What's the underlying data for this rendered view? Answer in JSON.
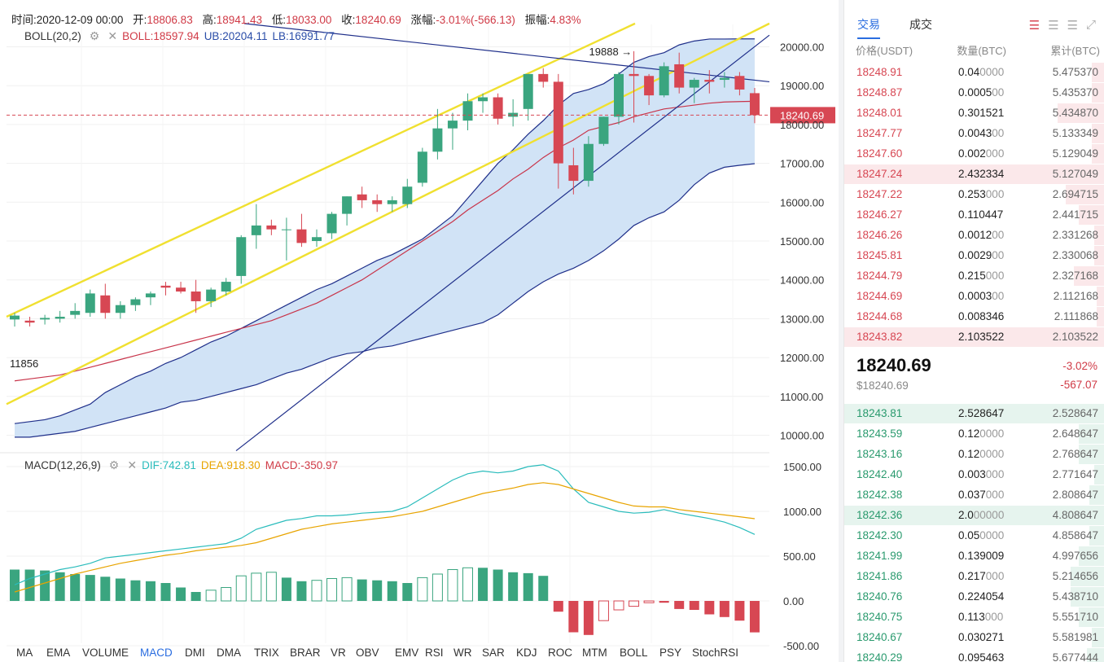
{
  "header": {
    "time_label": "时间:",
    "time": "2020-12-09 00:00",
    "open_label": "开:",
    "open": "18806.83",
    "high_label": "高:",
    "high": "18941.43",
    "low_label": "低:",
    "low": "18033.00",
    "close_label": "收:",
    "close": "18240.69",
    "chg_label": "涨幅:",
    "chg": "-3.01%(-566.13)",
    "amp_label": "振幅:",
    "amp": "4.83%"
  },
  "boll": {
    "name": "BOLL(20,2)",
    "mid": "BOLL:18597.94",
    "ub": "UB:20204.11",
    "lb": "LB:16991.77"
  },
  "macd": {
    "name": "MACD(12,26,9)",
    "dif": "DIF:742.81",
    "dea": "DEA:918.30",
    "macd": "MACD:-350.97"
  },
  "price_axis": [
    "20000.00",
    "19000.00",
    "18000.00",
    "17000.00",
    "16000.00",
    "15000.00",
    "14000.00",
    "13000.00",
    "12000.00",
    "11000.00",
    "10000.00"
  ],
  "current_price_tag": "18240.69",
  "high_annotation": "19888",
  "low_annotation": "11856",
  "macd_axis": [
    "1500.00",
    "1000.00",
    "500.00",
    "0.00",
    "-500.00"
  ],
  "indicator_tabs": [
    "MA",
    "EMA",
    "VOLUME",
    "MACD",
    "DMI",
    "DMA",
    "TRIX",
    "BRAR",
    "VR",
    "OBV",
    "EMV",
    "RSI",
    "WR",
    "SAR",
    "KDJ",
    "ROC",
    "MTM",
    "BOLL",
    "PSY",
    "StochRSI"
  ],
  "active_indicator": "MACD",
  "colors": {
    "up": "#3aa57f",
    "down": "#d74753",
    "boll_fill": "#cfe2f6",
    "boll_line": "#1f2f8a",
    "mid_line": "#c8344a",
    "trend_yellow": "#f0e030",
    "dif": "#2abcbc",
    "dea": "#e8a400"
  },
  "right_panel": {
    "tabs": [
      "交易",
      "成交"
    ],
    "columns": [
      "价格(USDT)",
      "数量(BTC)",
      "累计(BTC)"
    ],
    "asks": [
      {
        "p": "18248.91",
        "q": "0.04",
        "qd": "0000",
        "t": "5.475370",
        "bar": 0.05
      },
      {
        "p": "18248.87",
        "q": "0.0005",
        "qd": "00",
        "t": "5.435370",
        "bar": 0.05
      },
      {
        "p": "18248.01",
        "q": "0.301521",
        "qd": "",
        "t": "5.434870",
        "bar": 0.18
      },
      {
        "p": "18247.77",
        "q": "0.0043",
        "qd": "00",
        "t": "5.133349",
        "bar": 0.05
      },
      {
        "p": "18247.60",
        "q": "0.002",
        "qd": "000",
        "t": "5.129049",
        "bar": 0.05
      },
      {
        "p": "18247.24",
        "q": "2.432334",
        "qd": "",
        "t": "5.127049",
        "bar": 1.0
      },
      {
        "p": "18247.22",
        "q": "0.253",
        "qd": "000",
        "t": "2.694715",
        "bar": 0.15
      },
      {
        "p": "18246.27",
        "q": "0.110447",
        "qd": "",
        "t": "2.441715",
        "bar": 0.1
      },
      {
        "p": "18246.26",
        "q": "0.0012",
        "qd": "00",
        "t": "2.331268",
        "bar": 0.04
      },
      {
        "p": "18245.81",
        "q": "0.0029",
        "qd": "00",
        "t": "2.330068",
        "bar": 0.04
      },
      {
        "p": "18244.79",
        "q": "0.215",
        "qd": "000",
        "t": "2.327168",
        "bar": 0.12
      },
      {
        "p": "18244.69",
        "q": "0.0003",
        "qd": "00",
        "t": "2.112168",
        "bar": 0.03
      },
      {
        "p": "18244.68",
        "q": "0.008346",
        "qd": "",
        "t": "2.111868",
        "bar": 0.03
      },
      {
        "p": "18243.82",
        "q": "2.103522",
        "qd": "",
        "t": "2.103522",
        "bar": 1.0
      }
    ],
    "last_price": "18240.69",
    "last_usd": "$18240.69",
    "last_pct": "-3.02%",
    "last_chg": "-567.07",
    "bids": [
      {
        "p": "18243.81",
        "q": "2.528647",
        "qd": "",
        "t": "2.528647",
        "bar": 1.0
      },
      {
        "p": "18243.59",
        "q": "0.12",
        "qd": "0000",
        "t": "2.648647",
        "bar": 0.1
      },
      {
        "p": "18243.16",
        "q": "0.12",
        "qd": "0000",
        "t": "2.768647",
        "bar": 0.1
      },
      {
        "p": "18242.40",
        "q": "0.003",
        "qd": "000",
        "t": "2.771647",
        "bar": 0.04
      },
      {
        "p": "18242.38",
        "q": "0.037",
        "qd": "000",
        "t": "2.808647",
        "bar": 0.06
      },
      {
        "p": "18242.36",
        "q": "2.0",
        "qd": "00000",
        "t": "4.808647",
        "bar": 1.0
      },
      {
        "p": "18242.30",
        "q": "0.05",
        "qd": "0000",
        "t": "4.858647",
        "bar": 0.06
      },
      {
        "p": "18241.99",
        "q": "0.139009",
        "qd": "",
        "t": "4.997656",
        "bar": 0.1
      },
      {
        "p": "18241.86",
        "q": "0.217",
        "qd": "000",
        "t": "5.214656",
        "bar": 0.13
      },
      {
        "p": "18240.76",
        "q": "0.224054",
        "qd": "",
        "t": "5.438710",
        "bar": 0.13
      },
      {
        "p": "18240.75",
        "q": "0.113",
        "qd": "000",
        "t": "5.551710",
        "bar": 0.1
      },
      {
        "p": "18240.67",
        "q": "0.030271",
        "qd": "",
        "t": "5.581981",
        "bar": 0.05
      },
      {
        "p": "18240.29",
        "q": "0.095463",
        "qd": "",
        "t": "5.677444",
        "bar": 0.07
      }
    ]
  },
  "chart_data": {
    "type": "candlestick",
    "ohlc": [
      [
        12980,
        13150,
        12800,
        13080
      ],
      [
        12950,
        13050,
        12800,
        12900
      ],
      [
        12980,
        13100,
        12850,
        13020
      ],
      [
        13000,
        13200,
        12900,
        13050
      ],
      [
        13100,
        13400,
        13000,
        13200
      ],
      [
        13150,
        13750,
        13050,
        13650
      ],
      [
        13600,
        13900,
        13000,
        13150
      ],
      [
        13150,
        13450,
        13000,
        13350
      ],
      [
        13350,
        13550,
        13200,
        13500
      ],
      [
        13550,
        13700,
        13350,
        13650
      ],
      [
        13850,
        13950,
        13600,
        13800
      ],
      [
        13800,
        13950,
        13650,
        13700
      ],
      [
        13700,
        14000,
        13150,
        13450
      ],
      [
        13450,
        13800,
        13300,
        13750
      ],
      [
        13700,
        14050,
        13600,
        13950
      ],
      [
        14100,
        15150,
        13900,
        15100
      ],
      [
        15150,
        15950,
        14800,
        15400
      ],
      [
        15400,
        15550,
        15150,
        15300
      ],
      [
        15300,
        15600,
        14500,
        15300
      ],
      [
        15300,
        15700,
        14850,
        14950
      ],
      [
        15000,
        15300,
        14850,
        15100
      ],
      [
        15200,
        15750,
        15050,
        15700
      ],
      [
        15700,
        16150,
        15400,
        16150
      ],
      [
        16200,
        16400,
        15850,
        16050
      ],
      [
        16050,
        16200,
        15750,
        15950
      ],
      [
        15950,
        16150,
        15750,
        16050
      ],
      [
        15950,
        16600,
        15850,
        16400
      ],
      [
        16500,
        17400,
        16400,
        17300
      ],
      [
        17300,
        18400,
        17100,
        17900
      ],
      [
        17900,
        18300,
        17350,
        18100
      ],
      [
        18100,
        18800,
        17850,
        18600
      ],
      [
        18600,
        18800,
        18300,
        18700
      ],
      [
        18700,
        18800,
        18000,
        18150
      ],
      [
        18200,
        18650,
        17950,
        18300
      ],
      [
        18400,
        19300,
        18100,
        19300
      ],
      [
        19300,
        19450,
        18950,
        19100
      ],
      [
        19100,
        19300,
        16350,
        17000
      ],
      [
        16950,
        17400,
        16200,
        16550
      ],
      [
        16550,
        17700,
        16400,
        17500
      ],
      [
        17500,
        18200,
        17450,
        18200
      ],
      [
        18200,
        19350,
        18000,
        19300
      ],
      [
        19300,
        19888,
        18050,
        19250
      ],
      [
        19250,
        19300,
        18500,
        18750
      ],
      [
        18750,
        19600,
        18700,
        19500
      ],
      [
        19550,
        19850,
        18800,
        18950
      ],
      [
        18950,
        19200,
        18550,
        19150
      ],
      [
        19150,
        19400,
        18800,
        19100
      ],
      [
        19150,
        19350,
        18950,
        19200
      ],
      [
        19250,
        19350,
        18750,
        18900
      ],
      [
        18806.83,
        18941.43,
        18033,
        18240.69
      ]
    ],
    "boll_upper": [
      10300,
      10350,
      10400,
      10500,
      10650,
      10800,
      11100,
      11300,
      11500,
      11650,
      11850,
      12000,
      12200,
      12400,
      12550,
      12750,
      12950,
      13150,
      13350,
      13550,
      13750,
      13900,
      14100,
      14300,
      14500,
      14650,
      14850,
      15050,
      15350,
      15650,
      16100,
      16550,
      17000,
      17350,
      17750,
      18100,
      18500,
      18800,
      18900,
      19050,
      19300,
      19600,
      19750,
      19850,
      20050,
      20150,
      20200,
      20200,
      20204,
      20204
    ],
    "boll_mid": [
      11400,
      11450,
      11500,
      11550,
      11650,
      11750,
      11850,
      11950,
      12050,
      12150,
      12250,
      12350,
      12450,
      12550,
      12650,
      12750,
      12850,
      12950,
      13100,
      13250,
      13400,
      13600,
      13800,
      14000,
      14250,
      14500,
      14750,
      15000,
      15250,
      15500,
      15800,
      16050,
      16300,
      16600,
      16850,
      17150,
      17400,
      17600,
      17850,
      17950,
      18050,
      18200,
      18300,
      18400,
      18450,
      18500,
      18550,
      18580,
      18590,
      18598
    ],
    "boll_lower": [
      9950,
      9950,
      10000,
      10050,
      10100,
      10200,
      10300,
      10400,
      10500,
      10600,
      10700,
      10850,
      10900,
      11000,
      11100,
      11200,
      11300,
      11450,
      11600,
      11700,
      11850,
      12000,
      12100,
      12150,
      12250,
      12300,
      12400,
      12500,
      12600,
      12700,
      12800,
      12900,
      13100,
      13400,
      13700,
      13950,
      14150,
      14300,
      14500,
      14750,
      15050,
      15400,
      15600,
      15750,
      16050,
      16450,
      16750,
      16900,
      16950,
      16992
    ],
    "dif": [
      180,
      250,
      300,
      350,
      380,
      420,
      480,
      500,
      520,
      540,
      560,
      580,
      600,
      620,
      640,
      700,
      800,
      850,
      900,
      920,
      950,
      950,
      960,
      980,
      990,
      1000,
      1050,
      1150,
      1250,
      1350,
      1420,
      1450,
      1430,
      1450,
      1500,
      1520,
      1450,
      1250,
      1100,
      1050,
      1000,
      980,
      990,
      1020,
      980,
      950,
      920,
      880,
      820,
      742.81
    ],
    "dea": [
      100,
      150,
      200,
      250,
      300,
      340,
      380,
      420,
      450,
      480,
      510,
      530,
      560,
      580,
      600,
      620,
      650,
      700,
      750,
      800,
      830,
      860,
      880,
      900,
      920,
      940,
      970,
      1000,
      1050,
      1100,
      1150,
      1200,
      1230,
      1260,
      1300,
      1320,
      1300,
      1250,
      1200,
      1150,
      1100,
      1060,
      1050,
      1050,
      1020,
      1000,
      980,
      960,
      940,
      918.3
    ],
    "macd_hist": [
      350,
      350,
      340,
      320,
      300,
      290,
      270,
      250,
      230,
      220,
      200,
      150,
      100,
      120,
      150,
      280,
      310,
      320,
      260,
      220,
      230,
      250,
      260,
      240,
      230,
      220,
      200,
      260,
      300,
      350,
      370,
      370,
      350,
      320,
      310,
      280,
      -120,
      -350,
      -380,
      -220,
      -100,
      -60,
      -20,
      -20,
      -90,
      -100,
      -150,
      -180,
      -220,
      -350.97
    ],
    "price_range": [
      9500,
      20600
    ],
    "macd_range": [
      -550,
      1550
    ],
    "overlays": [
      "BOLL(20,2)",
      "trendlines"
    ]
  }
}
